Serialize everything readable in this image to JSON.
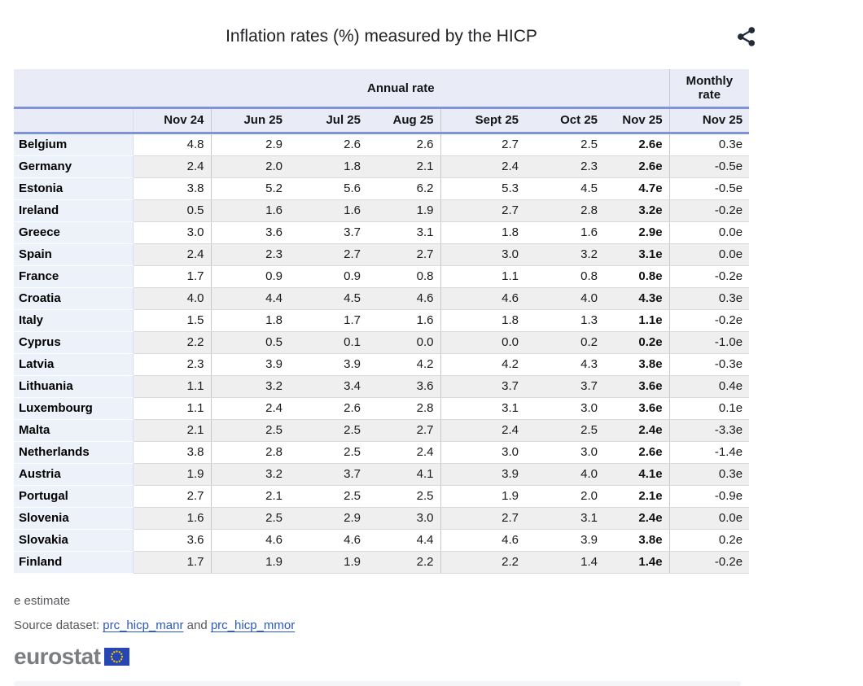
{
  "title": "Inflation rates (%) measured by the HICP",
  "chart_data": {
    "type": "table",
    "title": "Inflation rates (%) measured by the HICP",
    "column_groups": {
      "annual": "Annual rate",
      "monthly": "Monthly rate"
    },
    "annual_columns": [
      "Nov 24",
      "Jun 25",
      "Jul 25",
      "Aug 25",
      "Sept 25",
      "Oct 25",
      "Nov 25"
    ],
    "monthly_column": "Nov 25",
    "rows": [
      {
        "country": "Belgium",
        "annual": [
          "4.8",
          "2.9",
          "2.6",
          "2.6",
          "2.7",
          "2.5",
          "2.6e"
        ],
        "monthly": "0.3e"
      },
      {
        "country": "Germany",
        "annual": [
          "2.4",
          "2.0",
          "1.8",
          "2.1",
          "2.4",
          "2.3",
          "2.6e"
        ],
        "monthly": "-0.5e"
      },
      {
        "country": "Estonia",
        "annual": [
          "3.8",
          "5.2",
          "5.6",
          "6.2",
          "5.3",
          "4.5",
          "4.7e"
        ],
        "monthly": "-0.5e"
      },
      {
        "country": "Ireland",
        "annual": [
          "0.5",
          "1.6",
          "1.6",
          "1.9",
          "2.7",
          "2.8",
          "3.2e"
        ],
        "monthly": "-0.2e"
      },
      {
        "country": "Greece",
        "annual": [
          "3.0",
          "3.6",
          "3.7",
          "3.1",
          "1.8",
          "1.6",
          "2.9e"
        ],
        "monthly": "0.0e"
      },
      {
        "country": "Spain",
        "annual": [
          "2.4",
          "2.3",
          "2.7",
          "2.7",
          "3.0",
          "3.2",
          "3.1e"
        ],
        "monthly": "0.0e"
      },
      {
        "country": "France",
        "annual": [
          "1.7",
          "0.9",
          "0.9",
          "0.8",
          "1.1",
          "0.8",
          "0.8e"
        ],
        "monthly": "-0.2e"
      },
      {
        "country": "Croatia",
        "annual": [
          "4.0",
          "4.4",
          "4.5",
          "4.6",
          "4.6",
          "4.0",
          "4.3e"
        ],
        "monthly": "0.3e"
      },
      {
        "country": "Italy",
        "annual": [
          "1.5",
          "1.8",
          "1.7",
          "1.6",
          "1.8",
          "1.3",
          "1.1e"
        ],
        "monthly": "-0.2e"
      },
      {
        "country": "Cyprus",
        "annual": [
          "2.2",
          "0.5",
          "0.1",
          "0.0",
          "0.0",
          "0.2",
          "0.2e"
        ],
        "monthly": "-1.0e"
      },
      {
        "country": "Latvia",
        "annual": [
          "2.3",
          "3.9",
          "3.9",
          "4.2",
          "4.2",
          "4.3",
          "3.8e"
        ],
        "monthly": "-0.3e"
      },
      {
        "country": "Lithuania",
        "annual": [
          "1.1",
          "3.2",
          "3.4",
          "3.6",
          "3.7",
          "3.7",
          "3.6e"
        ],
        "monthly": "0.4e"
      },
      {
        "country": "Luxembourg",
        "annual": [
          "1.1",
          "2.4",
          "2.6",
          "2.8",
          "3.1",
          "3.0",
          "3.6e"
        ],
        "monthly": "0.1e"
      },
      {
        "country": "Malta",
        "annual": [
          "2.1",
          "2.5",
          "2.5",
          "2.7",
          "2.4",
          "2.5",
          "2.4e"
        ],
        "monthly": "-3.3e"
      },
      {
        "country": "Netherlands",
        "annual": [
          "3.8",
          "2.8",
          "2.5",
          "2.4",
          "3.0",
          "3.0",
          "2.6e"
        ],
        "monthly": "-1.4e"
      },
      {
        "country": "Austria",
        "annual": [
          "1.9",
          "3.2",
          "3.7",
          "4.1",
          "3.9",
          "4.0",
          "4.1e"
        ],
        "monthly": "0.3e"
      },
      {
        "country": "Portugal",
        "annual": [
          "2.7",
          "2.1",
          "2.5",
          "2.5",
          "1.9",
          "2.0",
          "2.1e"
        ],
        "monthly": "-0.9e"
      },
      {
        "country": "Slovenia",
        "annual": [
          "1.6",
          "2.5",
          "2.9",
          "3.0",
          "2.7",
          "3.1",
          "2.4e"
        ],
        "monthly": "0.0e"
      },
      {
        "country": "Slovakia",
        "annual": [
          "3.6",
          "4.6",
          "4.6",
          "4.4",
          "4.6",
          "3.9",
          "3.8e"
        ],
        "monthly": "0.2e"
      },
      {
        "country": "Finland",
        "annual": [
          "1.7",
          "1.9",
          "1.9",
          "2.2",
          "2.2",
          "1.4",
          "1.4e"
        ],
        "monthly": "-0.2e"
      }
    ]
  },
  "footnote": "e estimate",
  "source": {
    "prefix": "Source dataset:",
    "link1": "prc_hicp_manr",
    "conjunction": "and",
    "link2": "prc_hicp_mmor"
  },
  "logo": {
    "text": "eurostat"
  },
  "icons": {
    "share": "share-icon",
    "eu_flag": "eu-flag-icon"
  },
  "colors": {
    "header_bg": "#e9ecf7",
    "label_bg": "#edf1fa",
    "stripe_bg": "#efefef",
    "blue_rule": "#7e93d8",
    "link_blue": "#2a58c5",
    "flag_blue": "#2546b4",
    "star_yellow": "#f2c500",
    "logo_gray": "#7b7d80",
    "share_icon": "#232a38"
  }
}
